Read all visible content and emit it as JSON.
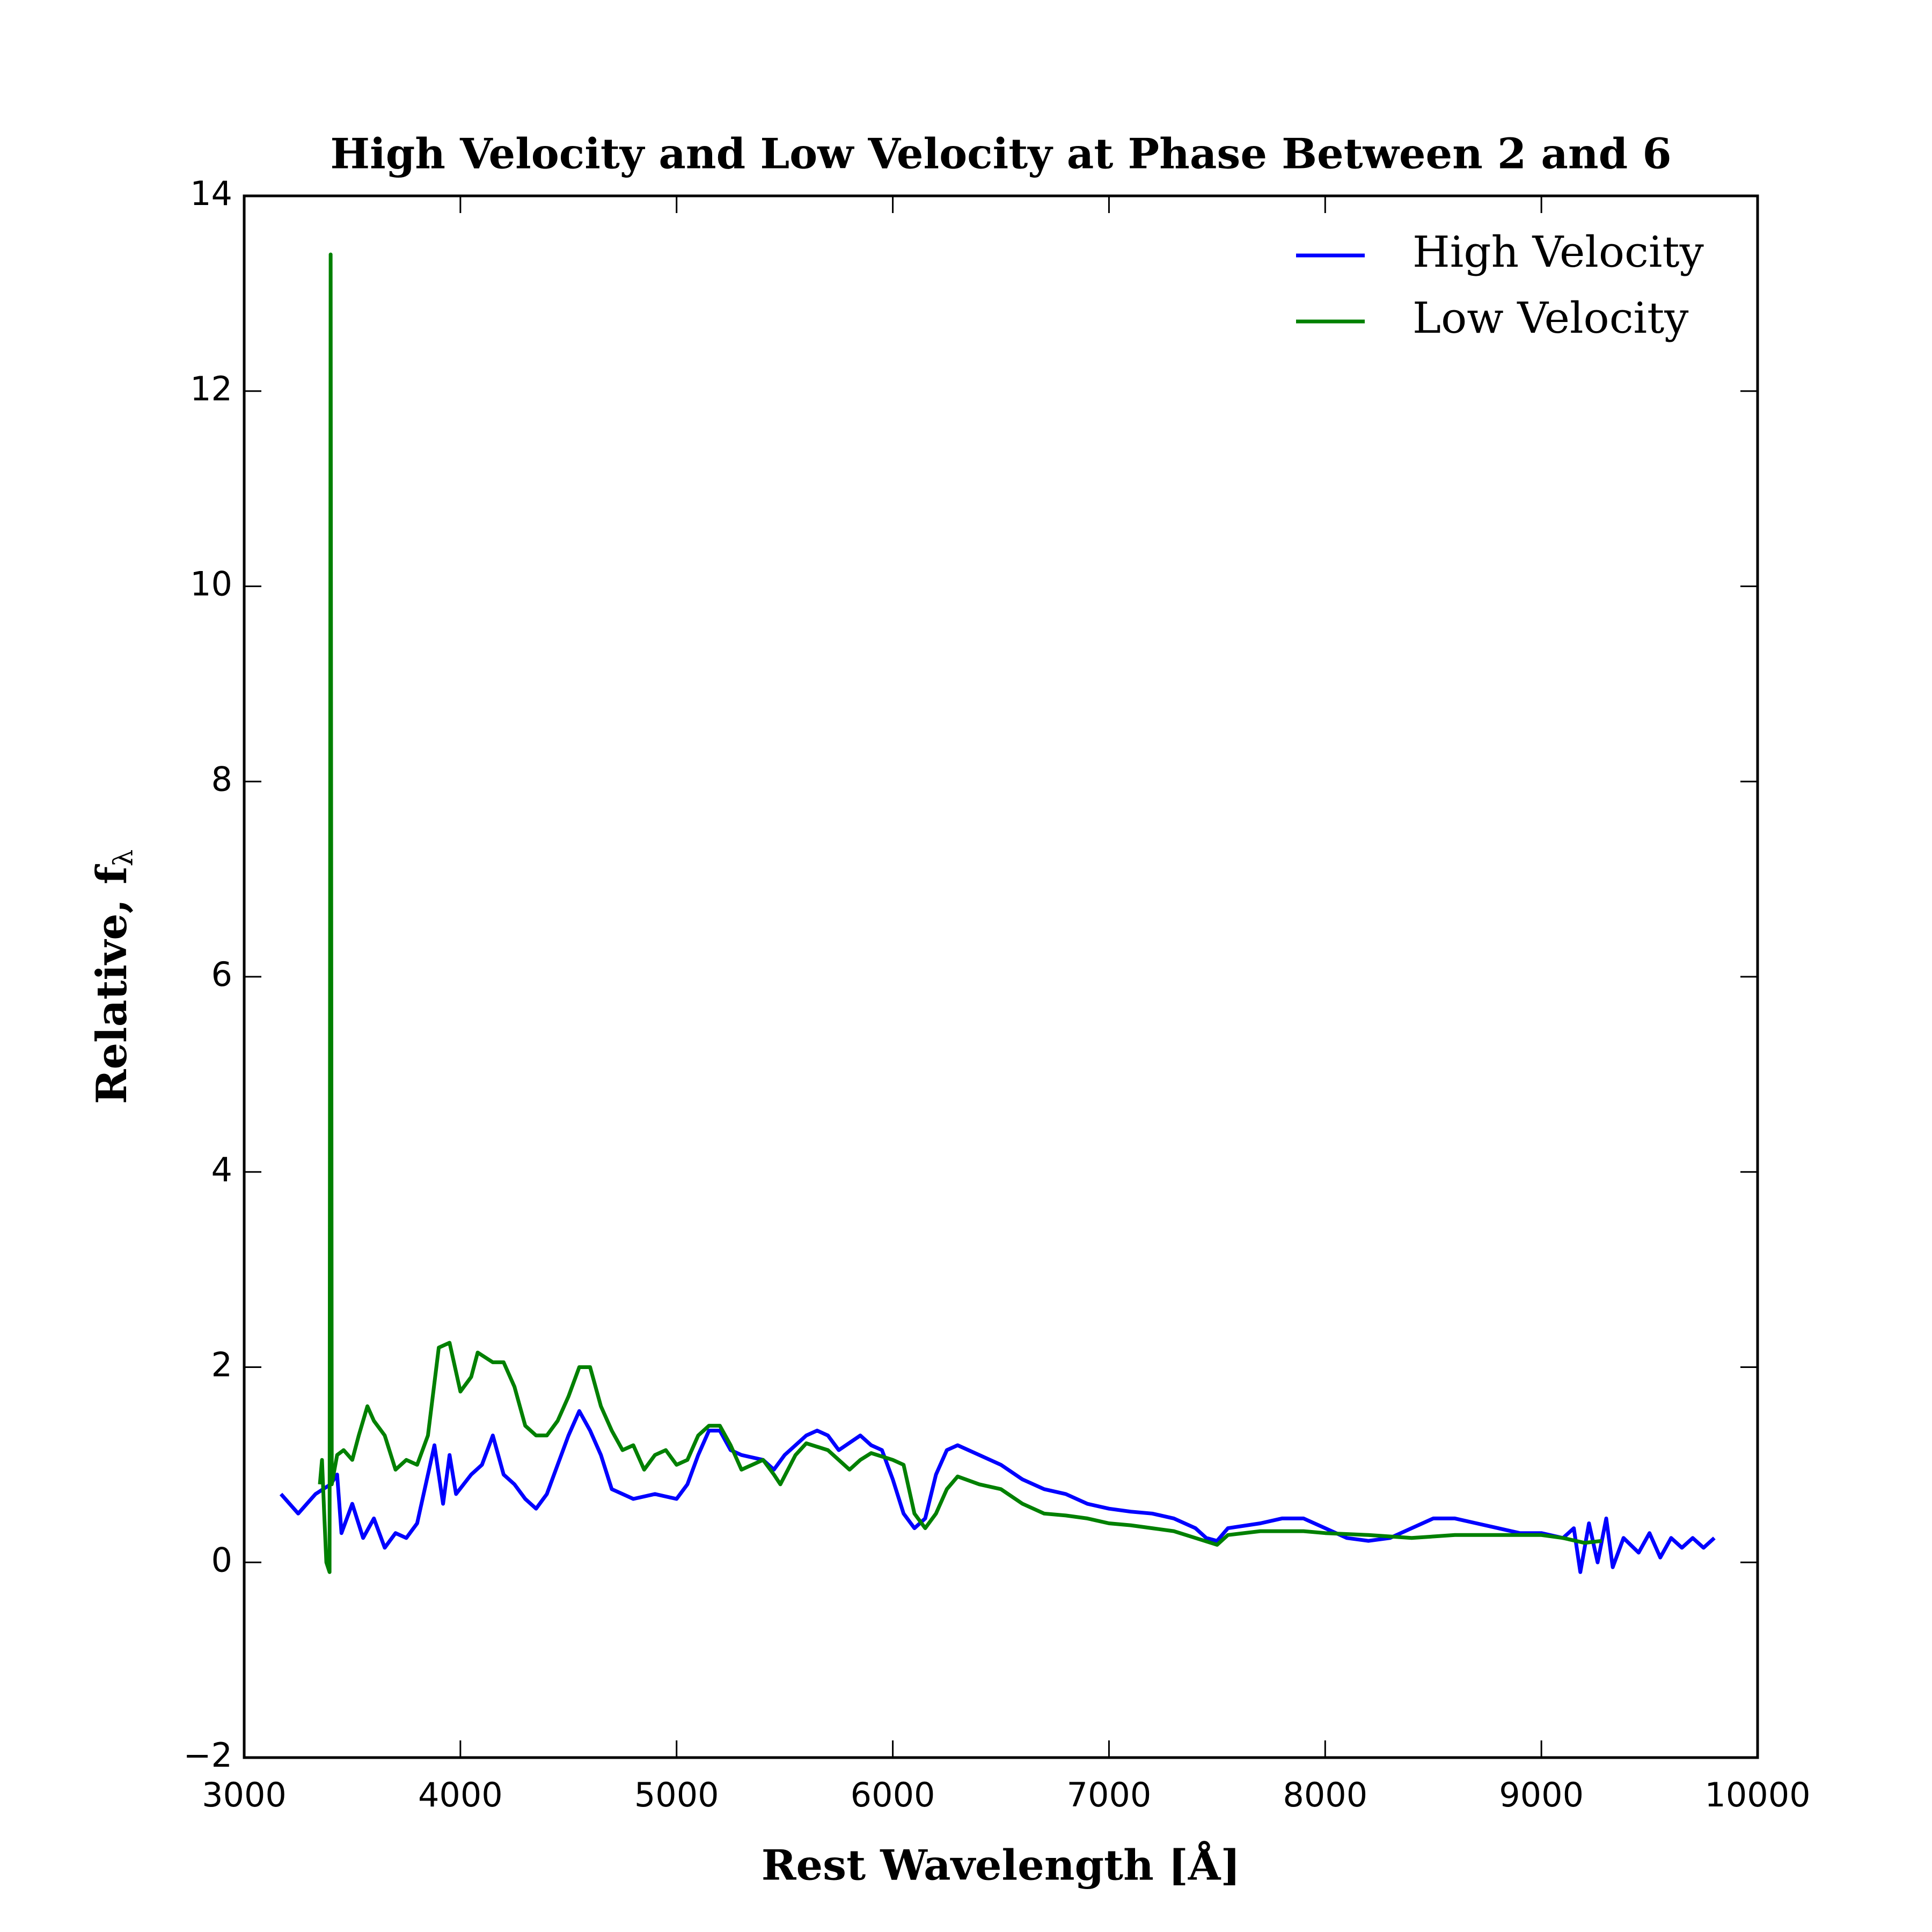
{
  "chart_data": {
    "type": "line",
    "title": "High Velocity and Low Velocity at Phase Between 2 and 6",
    "xlabel": "Rest Wavelength [Å]",
    "ylabel": "Relative, f",
    "ylabel_subscript": "λ",
    "xlim": [
      3000,
      10000
    ],
    "ylim": [
      -2,
      14
    ],
    "xticks": [
      3000,
      4000,
      5000,
      6000,
      7000,
      8000,
      9000,
      10000
    ],
    "yticks": [
      {
        "value": -2,
        "label": "−2"
      },
      0,
      2,
      4,
      6,
      8,
      10,
      12,
      14
    ],
    "legend": "upper right",
    "series": [
      {
        "name": "High Velocity",
        "color": "#0000ff",
        "x": [
          3170,
          3250,
          3330,
          3400,
          3430,
          3450,
          3500,
          3550,
          3600,
          3650,
          3700,
          3750,
          3800,
          3850,
          3880,
          3920,
          3950,
          3980,
          4050,
          4100,
          4150,
          4200,
          4250,
          4300,
          4350,
          4400,
          4450,
          4500,
          4550,
          4600,
          4650,
          4700,
          4800,
          4900,
          5000,
          5050,
          5100,
          5150,
          5200,
          5250,
          5300,
          5400,
          5450,
          5500,
          5600,
          5650,
          5700,
          5750,
          5850,
          5900,
          5950,
          6000,
          6050,
          6100,
          6150,
          6200,
          6250,
          6300,
          6400,
          6500,
          6600,
          6700,
          6800,
          6900,
          7000,
          7100,
          7200,
          7300,
          7400,
          7450,
          7500,
          7550,
          7700,
          7800,
          7900,
          8000,
          8100,
          8200,
          8300,
          8400,
          8500,
          8600,
          8700,
          8800,
          8900,
          9000,
          9100,
          9150,
          9180,
          9220,
          9260,
          9300,
          9330,
          9380,
          9450,
          9500,
          9550,
          9600,
          9650,
          9700,
          9750,
          9800
        ],
        "values": [
          0.7,
          0.5,
          0.7,
          0.8,
          0.9,
          0.3,
          0.6,
          0.25,
          0.45,
          0.15,
          0.3,
          0.25,
          0.4,
          0.9,
          1.2,
          0.6,
          1.1,
          0.7,
          0.9,
          1.0,
          1.3,
          0.9,
          0.8,
          0.65,
          0.55,
          0.7,
          1.0,
          1.3,
          1.55,
          1.35,
          1.1,
          0.75,
          0.65,
          0.7,
          0.65,
          0.8,
          1.1,
          1.35,
          1.35,
          1.15,
          1.1,
          1.05,
          0.95,
          1.1,
          1.3,
          1.35,
          1.3,
          1.15,
          1.3,
          1.2,
          1.15,
          0.85,
          0.5,
          0.35,
          0.45,
          0.9,
          1.15,
          1.2,
          1.1,
          1.0,
          0.85,
          0.75,
          0.7,
          0.6,
          0.55,
          0.52,
          0.5,
          0.45,
          0.35,
          0.25,
          0.22,
          0.35,
          0.4,
          0.45,
          0.45,
          0.35,
          0.25,
          0.22,
          0.25,
          0.35,
          0.45,
          0.45,
          0.4,
          0.35,
          0.3,
          0.3,
          0.25,
          0.35,
          -0.1,
          0.4,
          0.0,
          0.45,
          -0.05,
          0.25,
          0.1,
          0.3,
          0.05,
          0.25,
          0.15,
          0.25,
          0.15,
          0.25
        ]
      },
      {
        "name": "Low Velocity",
        "color": "#008000",
        "x": [
          3350,
          3360,
          3370,
          3380,
          3395,
          3400,
          3405,
          3430,
          3460,
          3500,
          3530,
          3570,
          3600,
          3650,
          3700,
          3750,
          3800,
          3850,
          3900,
          3950,
          4000,
          4050,
          4080,
          4150,
          4200,
          4250,
          4300,
          4350,
          4400,
          4450,
          4500,
          4550,
          4600,
          4650,
          4700,
          4750,
          4800,
          4850,
          4900,
          4950,
          5000,
          5050,
          5100,
          5150,
          5200,
          5250,
          5300,
          5400,
          5450,
          5480,
          5550,
          5600,
          5700,
          5800,
          5850,
          5900,
          6000,
          6050,
          6100,
          6150,
          6200,
          6250,
          6300,
          6400,
          6500,
          6600,
          6700,
          6800,
          6900,
          7000,
          7100,
          7200,
          7300,
          7400,
          7500,
          7550,
          7700,
          7900,
          8000,
          8200,
          8400,
          8600,
          8800,
          9000,
          9100,
          9200,
          9280
        ],
        "values": [
          0.8,
          1.05,
          0.5,
          0.0,
          -0.1,
          13.4,
          0.8,
          1.1,
          1.15,
          1.05,
          1.3,
          1.6,
          1.45,
          1.3,
          0.95,
          1.05,
          1.0,
          1.3,
          2.2,
          2.25,
          1.75,
          1.9,
          2.15,
          2.05,
          2.05,
          1.8,
          1.4,
          1.3,
          1.3,
          1.45,
          1.7,
          2.0,
          2.0,
          1.6,
          1.35,
          1.15,
          1.2,
          0.95,
          1.1,
          1.15,
          1.0,
          1.05,
          1.3,
          1.4,
          1.4,
          1.2,
          0.95,
          1.05,
          0.9,
          0.8,
          1.1,
          1.22,
          1.15,
          0.95,
          1.05,
          1.12,
          1.05,
          1.0,
          0.5,
          0.35,
          0.5,
          0.75,
          0.88,
          0.8,
          0.75,
          0.6,
          0.5,
          0.48,
          0.45,
          0.4,
          0.38,
          0.35,
          0.32,
          0.25,
          0.18,
          0.28,
          0.32,
          0.32,
          0.3,
          0.28,
          0.25,
          0.28,
          0.28,
          0.28,
          0.25,
          0.2,
          0.22
        ]
      }
    ]
  }
}
